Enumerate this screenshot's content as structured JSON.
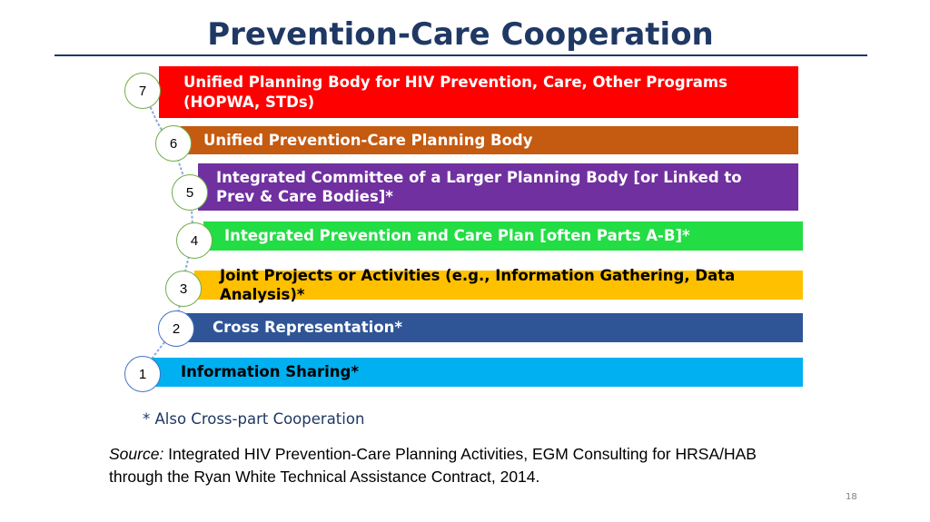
{
  "title": "Prevention-Care Cooperation",
  "colors": {
    "title": "#1f3864",
    "level_7": "#ff0000",
    "level_6": "#c55a11",
    "level_5": "#7030a0",
    "level_4": "#22dd44",
    "level_3": "#ffc000",
    "level_2": "#2f5597",
    "level_1": "#00b0f0"
  },
  "levels": [
    {
      "number": "7",
      "text": "Unified Planning Body  for HIV Prevention, Care,  Other Programs (HOPWA, STDs)"
    },
    {
      "number": "6",
      "text": "Unified Prevention-Care Planning Body"
    },
    {
      "number": "5",
      "text": "Integrated Committee of a Larger Planning Body [or Linked to Prev & Care Bodies]*"
    },
    {
      "number": "4",
      "text": "Integrated Prevention and Care Plan [often Parts A-B]*"
    },
    {
      "number": "3",
      "text": "Joint Projects or Activities (e.g., Information Gathering, Data Analysis)*"
    },
    {
      "number": "2",
      "text": "Cross Representation*"
    },
    {
      "number": "1",
      "text": "Information Sharing*"
    }
  ],
  "footnote": "* Also Cross-part Cooperation",
  "source": {
    "label": "Source:",
    "text": " Integrated HIV Prevention-Care Planning Activities, EGM Consulting for HRSA/HAB through the Ryan White Technical Assistance Contract, 2014."
  },
  "page_number": "18"
}
